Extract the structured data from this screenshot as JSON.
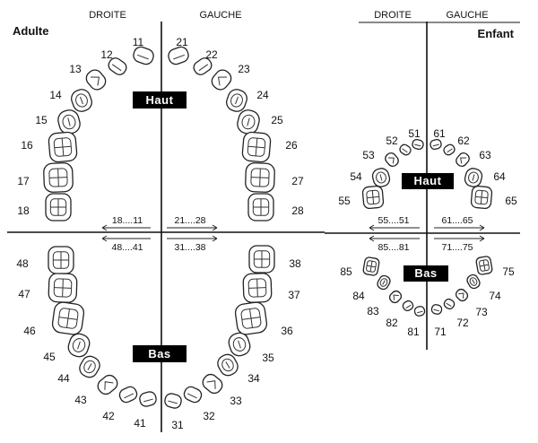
{
  "headers": {
    "adult_right": "DROITE",
    "adult_left": "GAUCHE",
    "child_right": "DROITE",
    "child_left": "GAUCHE"
  },
  "titles": {
    "adult": "Adulte",
    "child": "Enfant"
  },
  "tags": {
    "adult_top": "Haut",
    "adult_bottom": "Bas",
    "child_top": "Haut",
    "child_bottom": "Bas"
  },
  "ranges": {
    "adult_q1": "18....11",
    "adult_q2": "21....28",
    "adult_q4": "48....41",
    "adult_q3": "31....38",
    "child_q5": "55....51",
    "child_q6": "61....65",
    "child_q8": "85....81",
    "child_q7": "71....75"
  },
  "teeth": {
    "adult_upper_right": [
      "11",
      "12",
      "13",
      "14",
      "15",
      "16",
      "17",
      "18"
    ],
    "adult_upper_left": [
      "21",
      "22",
      "23",
      "24",
      "25",
      "26",
      "27",
      "28"
    ],
    "adult_lower_left": [
      "31",
      "32",
      "33",
      "34",
      "35",
      "36",
      "37",
      "38"
    ],
    "adult_lower_right": [
      "41",
      "42",
      "43",
      "44",
      "45",
      "46",
      "47",
      "48"
    ],
    "child_upper_right": [
      "51",
      "52",
      "53",
      "54",
      "55"
    ],
    "child_upper_left": [
      "61",
      "62",
      "63",
      "64",
      "65"
    ],
    "child_lower_left": [
      "71",
      "72",
      "73",
      "74",
      "75"
    ],
    "child_lower_right": [
      "81",
      "82",
      "83",
      "84",
      "85"
    ]
  },
  "colors": {
    "ink": "#111111",
    "tag_bg": "#000000",
    "tag_text": "#ffffff"
  }
}
